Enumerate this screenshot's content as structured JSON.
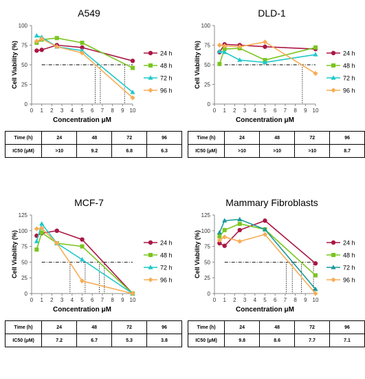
{
  "colors": {
    "24 h": "#aa1744",
    "48 h": "#7ac51f",
    "72 h": "#1fc8c8",
    "96 h": "#f7ad55",
    "72 h (Mammary Fibroblasts)": "#1a9a9a"
  },
  "chart_data": [
    {
      "type": "line",
      "title": "A549",
      "xlabel": "Concentration μM",
      "ylabel": "Cell Viability (%)",
      "xlim": [
        0,
        10
      ],
      "ylim": [
        0,
        100
      ],
      "xticks": [
        0,
        1,
        2,
        3,
        4,
        5,
        6,
        7,
        8,
        9,
        10
      ],
      "yticks": [
        0,
        25,
        50,
        75,
        100
      ],
      "legend": "right",
      "ic50_reference_line": 50,
      "series": [
        {
          "name": "24 h",
          "x": [
            0.5,
            1,
            2.5,
            5,
            10
          ],
          "values": [
            68,
            69,
            75,
            72,
            55
          ]
        },
        {
          "name": "48 h",
          "x": [
            0.5,
            1,
            2.5,
            5,
            10
          ],
          "values": [
            78,
            82,
            84,
            78,
            46
          ]
        },
        {
          "name": "72 h",
          "x": [
            0.5,
            1,
            2.5,
            5,
            10
          ],
          "values": [
            87,
            85,
            73,
            68,
            15
          ]
        },
        {
          "name": "96 h",
          "x": [
            0.5,
            1,
            2.5,
            5,
            10
          ],
          "values": [
            80,
            83,
            73,
            65,
            8
          ]
        }
      ],
      "ic50_markers": [
        9.2,
        6.8,
        6.3
      ],
      "table": {
        "header": [
          "Time (h)",
          "24",
          "48",
          "72",
          "96"
        ],
        "row": [
          "IC50 (μM)",
          ">10",
          "9.2",
          "6.8",
          "6.3"
        ]
      }
    },
    {
      "type": "line",
      "title": "DLD-1",
      "xlabel": "Concentration μM",
      "ylabel": "Cell Viability (%)",
      "xlim": [
        0,
        10
      ],
      "ylim": [
        0,
        100
      ],
      "xticks": [
        0,
        1,
        2,
        3,
        4,
        5,
        6,
        7,
        8,
        9,
        10
      ],
      "yticks": [
        0,
        25,
        50,
        75,
        100
      ],
      "legend": "right",
      "ic50_reference_line": 50,
      "series": [
        {
          "name": "24 h",
          "x": [
            0.5,
            1,
            2.5,
            5,
            10
          ],
          "values": [
            66,
            76,
            75,
            73,
            70
          ]
        },
        {
          "name": "48 h",
          "x": [
            0.5,
            1,
            2.5,
            5,
            10
          ],
          "values": [
            51,
            70,
            71,
            56,
            72
          ]
        },
        {
          "name": "72 h",
          "x": [
            0.5,
            1,
            2.5,
            5,
            10
          ],
          "values": [
            67,
            66,
            56,
            53,
            63
          ]
        },
        {
          "name": "96 h",
          "x": [
            0.5,
            1,
            2.5,
            5,
            10
          ],
          "values": [
            75,
            74,
            73,
            79,
            39
          ]
        }
      ],
      "ic50_markers": [
        8.7
      ],
      "table": {
        "header": [
          "Time (h)",
          "24",
          "48",
          "72",
          "96"
        ],
        "row": [
          "IC50 (μM)",
          ">10",
          ">10",
          ">10",
          "8.7"
        ]
      }
    },
    {
      "type": "line",
      "title": "MCF-7",
      "xlabel": "Concentration μM",
      "ylabel": "Cell Viability (%)",
      "xlim": [
        0,
        10
      ],
      "ylim": [
        0,
        125
      ],
      "xticks": [
        0,
        1,
        2,
        3,
        4,
        5,
        6,
        7,
        8,
        9,
        10
      ],
      "yticks": [
        0,
        25,
        50,
        75,
        100,
        125
      ],
      "legend": "right",
      "ic50_reference_line": 50,
      "series": [
        {
          "name": "24 h",
          "x": [
            0.5,
            1,
            2.5,
            5,
            10
          ],
          "values": [
            92,
            96,
            100,
            86,
            0
          ]
        },
        {
          "name": "48 h",
          "x": [
            0.5,
            1,
            2.5,
            5,
            10
          ],
          "values": [
            70,
            97,
            80,
            75,
            0
          ]
        },
        {
          "name": "72 h",
          "x": [
            0.5,
            1,
            2.5,
            5,
            10
          ],
          "values": [
            83,
            111,
            80,
            54,
            0
          ]
        },
        {
          "name": "96 h",
          "x": [
            0.5,
            1,
            2.5,
            5,
            10
          ],
          "values": [
            103,
            104,
            80,
            20,
            0
          ]
        }
      ],
      "ic50_markers": [
        7.2,
        6.7,
        5.3,
        3.8
      ],
      "table": {
        "header": [
          "Time (h)",
          "24",
          "48",
          "72",
          "96"
        ],
        "row": [
          "IC50 (μM)",
          "7.2",
          "6.7",
          "5.3",
          "3.8"
        ]
      }
    },
    {
      "type": "line",
      "title": "Mammary Fibroblasts",
      "xlabel": "Concentration μM",
      "ylabel": "Cell Viability (%)",
      "xlim": [
        0,
        10
      ],
      "ylim": [
        0,
        125
      ],
      "xticks": [
        0,
        1,
        2,
        3,
        4,
        5,
        6,
        7,
        8,
        9,
        10
      ],
      "yticks": [
        0,
        25,
        50,
        75,
        100,
        125
      ],
      "legend": "right",
      "ic50_reference_line": 50,
      "series": [
        {
          "name": "24 h",
          "x": [
            0.5,
            1,
            2.5,
            5,
            10
          ],
          "values": [
            80,
            76,
            101,
            116,
            48
          ]
        },
        {
          "name": "48 h",
          "x": [
            0.5,
            1,
            2.5,
            5,
            10
          ],
          "values": [
            91,
            101,
            111,
            102,
            29
          ]
        },
        {
          "name": "72 h",
          "x": [
            0.5,
            1,
            2.5,
            5,
            10
          ],
          "values": [
            97,
            116,
            118,
            102,
            7
          ]
        },
        {
          "name": "96 h",
          "x": [
            0.5,
            1,
            2.5,
            5,
            10
          ],
          "values": [
            85,
            90,
            83,
            94,
            0
          ]
        }
      ],
      "ic50_markers": [
        9.8,
        8.6,
        7.7,
        7.1
      ],
      "table": {
        "header": [
          "Time (h)",
          "24",
          "48",
          "72",
          "96"
        ],
        "row": [
          "IC50 (μM)",
          "9.8",
          "8.6",
          "7.7",
          "7.1"
        ]
      }
    }
  ]
}
